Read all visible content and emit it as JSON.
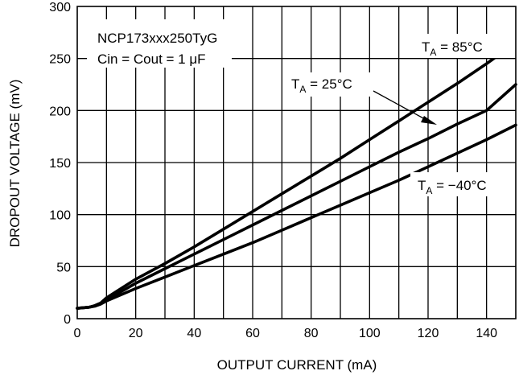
{
  "chart_data": {
    "type": "line",
    "title": "",
    "xlabel": "OUTPUT CURRENT (mA)",
    "ylabel": "DROPOUT VOLTAGE (mV)",
    "xlim": [
      0,
      150
    ],
    "ylim": [
      0,
      300
    ],
    "xticks": [
      0,
      20,
      40,
      60,
      80,
      100,
      120,
      140
    ],
    "yticks": [
      0,
      50,
      100,
      150,
      200,
      250,
      300
    ],
    "grid": true,
    "annotations": {
      "device": "NCP173xxx250TyG",
      "conditions": "Cin = Cout = 1 μF"
    },
    "series": [
      {
        "name": "TA = 85°C",
        "label_text": "T",
        "label_sub": "A",
        "label_rest": " = 85°C",
        "x": [
          0,
          2,
          4,
          6,
          8,
          10,
          20,
          30,
          40,
          50,
          60,
          70,
          80,
          90,
          100,
          110,
          120,
          130,
          140,
          150
        ],
        "y": [
          10,
          10.5,
          11,
          12.5,
          15,
          20,
          38,
          53,
          69,
          86,
          103,
          120,
          137,
          154,
          172,
          190,
          208,
          226,
          245,
          265
        ]
      },
      {
        "name": "TA = 25°C",
        "label_text": "T",
        "label_sub": "A",
        "label_rest": " = 25°C",
        "x": [
          0,
          2,
          4,
          6,
          8,
          10,
          20,
          30,
          40,
          50,
          60,
          70,
          80,
          90,
          100,
          110,
          120,
          130,
          140,
          150
        ],
        "y": [
          10,
          10.5,
          11,
          12.5,
          15,
          18,
          34,
          48,
          62,
          76,
          90,
          104,
          118,
          132,
          146,
          160,
          173,
          187,
          200,
          225
        ]
      },
      {
        "name": "TA = −40°C",
        "label_text": "T",
        "label_sub": "A",
        "label_rest": " = −40°C",
        "x": [
          0,
          2,
          4,
          6,
          8,
          10,
          20,
          30,
          40,
          50,
          60,
          70,
          80,
          90,
          100,
          110,
          120,
          130,
          140,
          150
        ],
        "y": [
          10,
          10.5,
          11,
          12,
          14,
          17,
          29,
          40,
          51,
          62,
          73,
          85,
          97,
          109,
          121,
          133,
          146,
          159,
          172,
          186
        ]
      }
    ]
  }
}
